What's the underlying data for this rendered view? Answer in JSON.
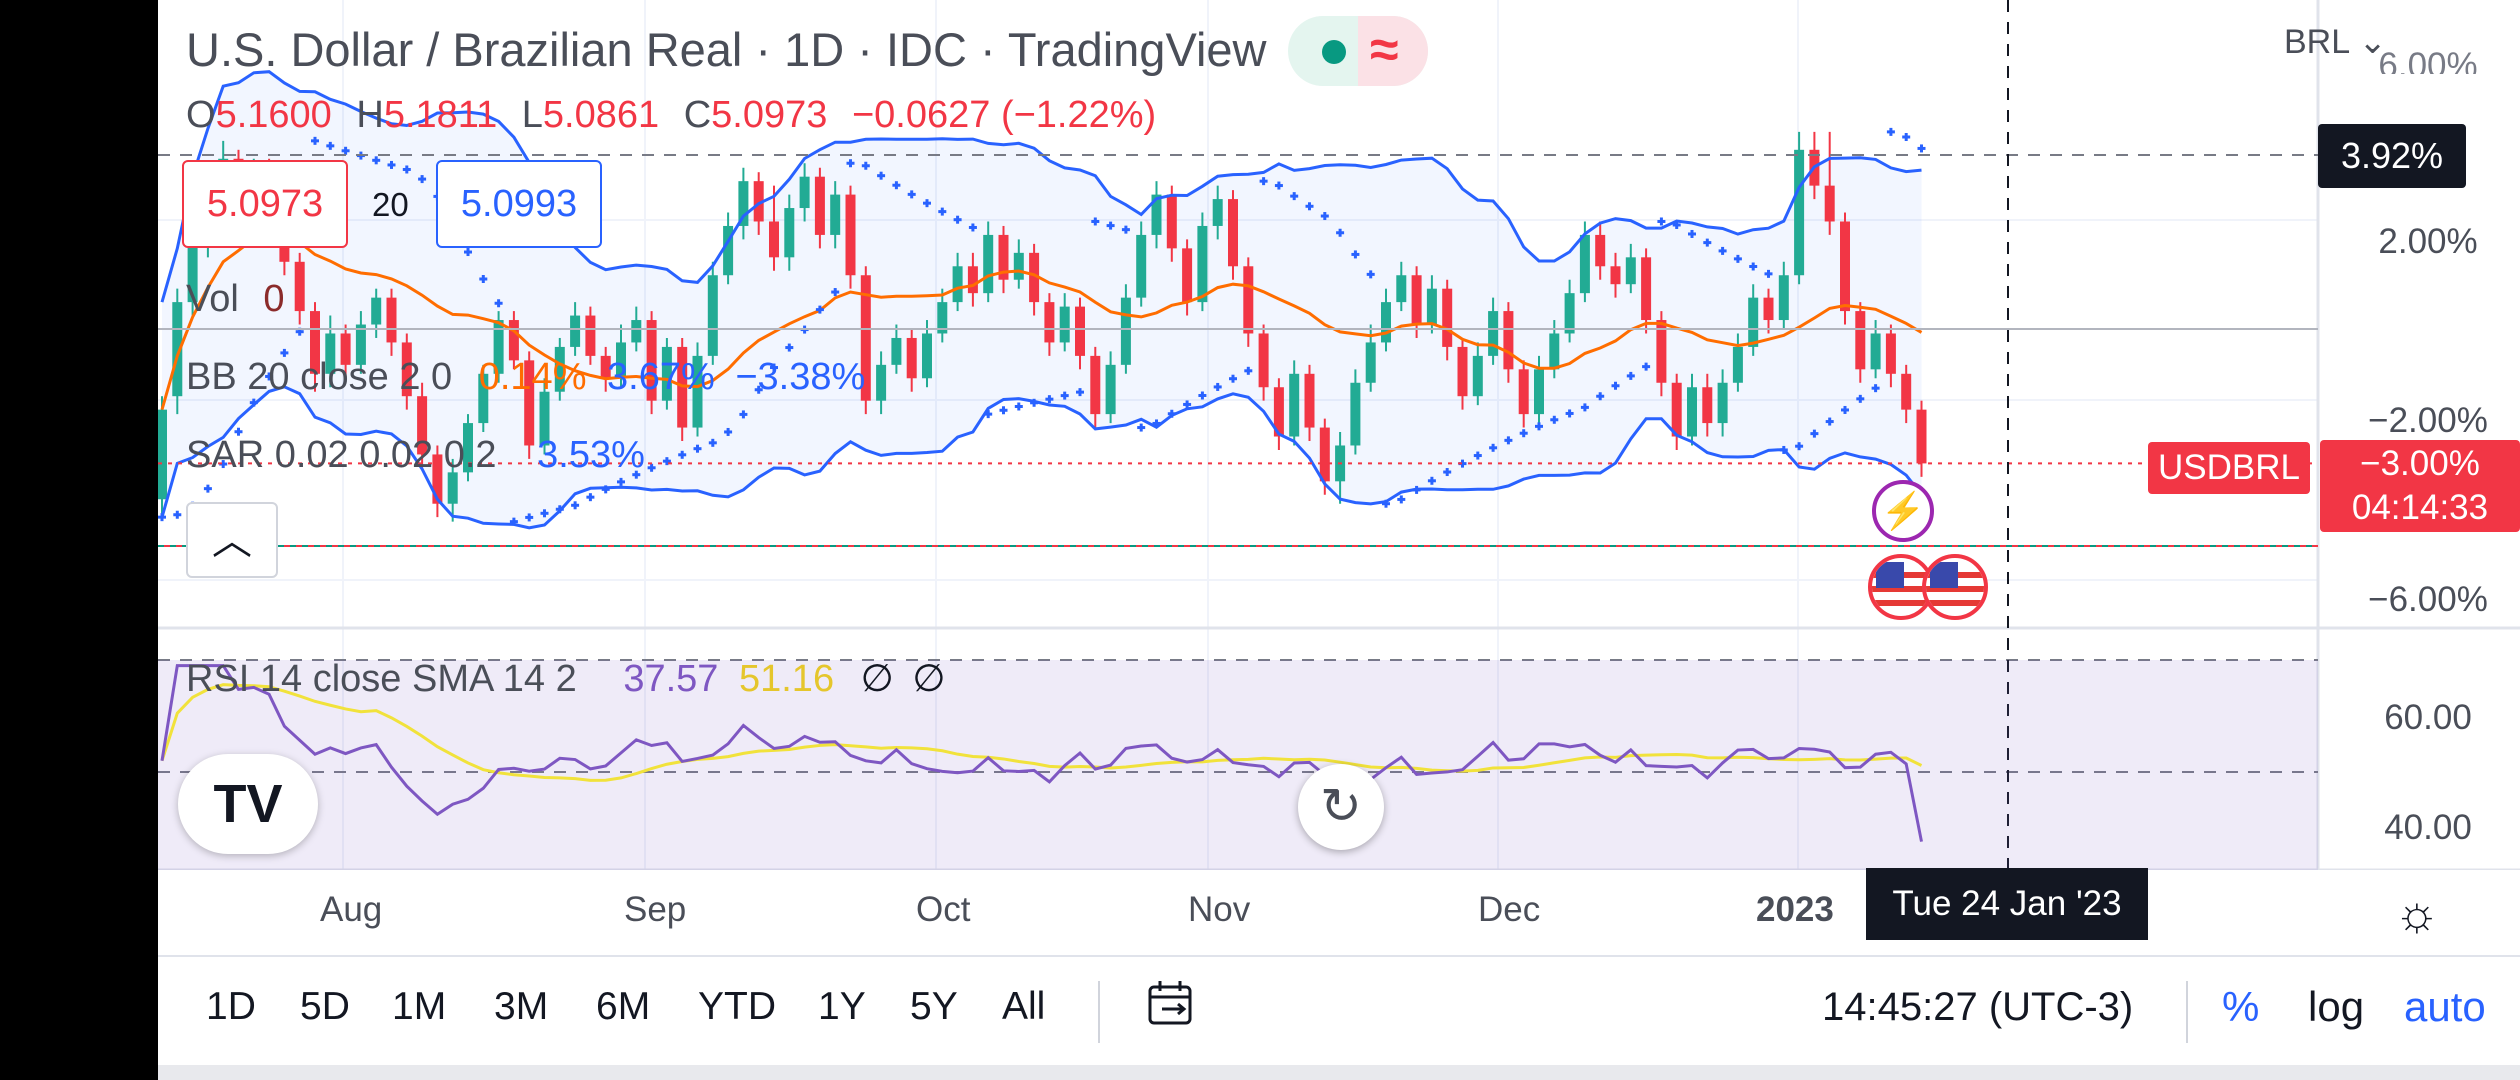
{
  "header": {
    "title": "U.S. Dollar / Brazilian Real · 1D · IDC · TradingView",
    "currency": "BRL"
  },
  "ohlc": {
    "o_key": "O",
    "o": "5.1600",
    "h_key": "H",
    "h": "5.1811",
    "l_key": "L",
    "l": "5.0861",
    "c_key": "C",
    "c": "5.0973",
    "change": "−0.0627 (−1.22%)"
  },
  "bb_boxes": {
    "left": "5.0973",
    "length": "20",
    "right": "5.0993"
  },
  "indicators": {
    "vol": {
      "name": "Vol",
      "value": "0"
    },
    "bb": {
      "name": "BB 20 close 2 0",
      "basis": "0.14%",
      "upper": "3.67%",
      "lower": "−3.38%"
    },
    "sar": {
      "name": "SAR 0.02 0.02 0.2",
      "value": "3.53%"
    },
    "rsi": {
      "name": "RSI 14 close SMA 14 2",
      "value": "37.57",
      "sma": "51.16",
      "na1": "∅",
      "na2": "∅"
    }
  },
  "price_scale": {
    "ticks": [
      "2.00%",
      "−2.00%",
      "−6.00%"
    ],
    "top_partial": "6.00%",
    "tag_high": "3.92%",
    "symbol": "USDBRL",
    "last_pct": "−3.00%",
    "countdown": "04:14:33"
  },
  "rsi_scale": {
    "ticks": [
      "60.00",
      "40.00"
    ]
  },
  "time_axis": {
    "labels": [
      "Aug",
      "Sep",
      "Oct",
      "Nov",
      "Dec"
    ],
    "year": "2023",
    "crosshair": "Tue 24 Jan '23"
  },
  "bottom_bar": {
    "ranges": [
      "1D",
      "5D",
      "1M",
      "3M",
      "6M",
      "YTD",
      "1Y",
      "5Y",
      "All"
    ],
    "clock": "14:45:27 (UTC-3)",
    "pct": "%",
    "log": "log",
    "auto": "auto"
  },
  "icons": {
    "logo": "tradingview-logo-icon",
    "reset": "reset-icon",
    "collapse": "chevron-up-icon",
    "settings": "sun-settings-icon",
    "calendar": "calendar-range-icon",
    "event_bolt": "lightning-icon",
    "event_flag": "us-flag-icon"
  },
  "colors": {
    "up": "#22ab94",
    "down": "#f23645",
    "bb_band": "#2962ff",
    "bb_basis": "#ff6d00",
    "rsi": "#7e57c2",
    "rsi_sma": "#f1e23b",
    "sar": "#2962ff"
  },
  "chart_data": {
    "type": "candlestick",
    "x_labels": [
      "Aug",
      "Sep",
      "Oct",
      "Nov",
      "Dec",
      "2023"
    ],
    "y_unit": "percent change",
    "y_ticks": [
      2,
      -2,
      -6
    ],
    "candles_pct": [
      [
        -3.8,
        -1.8,
        -4.2,
        -1.5
      ],
      [
        -1.5,
        0.6,
        -1.9,
        0.9
      ],
      [
        0.6,
        2.0,
        0.3,
        2.4
      ],
      [
        2.0,
        2.9,
        1.6,
        3.3
      ],
      [
        2.9,
        3.8,
        2.5,
        4.2
      ],
      [
        3.8,
        3.0,
        2.7,
        4.0
      ],
      [
        3.0,
        3.6,
        2.7,
        3.8
      ],
      [
        3.6,
        3.3,
        3.0,
        3.8
      ],
      [
        3.3,
        1.5,
        1.2,
        3.5
      ],
      [
        1.5,
        0.4,
        0.1,
        1.7
      ],
      [
        0.4,
        -1.0,
        -1.4,
        0.6
      ],
      [
        -1.0,
        -0.1,
        -1.3,
        0.3
      ],
      [
        -0.1,
        -0.8,
        -1.1,
        0.1
      ],
      [
        -0.8,
        0.1,
        -1.0,
        0.4
      ],
      [
        0.1,
        0.7,
        -0.2,
        0.9
      ],
      [
        0.7,
        -0.3,
        -0.6,
        0.9
      ],
      [
        -0.3,
        -1.5,
        -1.8,
        -0.1
      ],
      [
        -1.5,
        -2.8,
        -3.1,
        -1.2
      ],
      [
        -2.8,
        -3.9,
        -4.2,
        -2.6
      ],
      [
        -3.9,
        -3.2,
        -4.3,
        -2.9
      ],
      [
        -3.2,
        -2.1,
        -3.4,
        -1.9
      ],
      [
        -2.1,
        -1.0,
        -2.3,
        -0.8
      ],
      [
        -1.0,
        0.2,
        -1.2,
        0.4
      ],
      [
        0.2,
        -0.7,
        -0.9,
        0.4
      ],
      [
        -0.7,
        -2.6,
        -2.9,
        -0.5
      ],
      [
        -2.6,
        -1.4,
        -2.8,
        -1.1
      ],
      [
        -1.4,
        -0.4,
        -1.6,
        -0.2
      ],
      [
        -0.4,
        0.3,
        -0.6,
        0.6
      ],
      [
        0.3,
        -0.6,
        -0.8,
        0.5
      ],
      [
        -0.6,
        -1.1,
        -1.4,
        -0.4
      ],
      [
        -1.1,
        -0.3,
        -1.3,
        0.1
      ],
      [
        -0.3,
        0.2,
        -0.5,
        0.5
      ],
      [
        0.2,
        -1.6,
        -1.9,
        0.4
      ],
      [
        -1.6,
        -0.4,
        -1.8,
        -0.2
      ],
      [
        -0.4,
        -2.2,
        -2.5,
        -0.2
      ],
      [
        -2.2,
        -0.6,
        -2.4,
        -0.3
      ],
      [
        -0.6,
        1.2,
        -0.8,
        1.5
      ],
      [
        1.2,
        2.3,
        1.0,
        2.6
      ],
      [
        2.3,
        3.3,
        2.0,
        3.6
      ],
      [
        3.3,
        2.4,
        2.1,
        3.5
      ],
      [
        2.4,
        1.6,
        1.3,
        3.2
      ],
      [
        1.6,
        2.7,
        1.3,
        3.0
      ],
      [
        2.7,
        3.4,
        2.4,
        3.7
      ],
      [
        3.4,
        2.1,
        1.8,
        3.6
      ],
      [
        2.1,
        3.0,
        1.8,
        3.3
      ],
      [
        3.0,
        1.2,
        0.9,
        3.2
      ],
      [
        1.2,
        -1.6,
        -1.9,
        1.4
      ],
      [
        -1.6,
        -0.8,
        -1.9,
        -0.5
      ],
      [
        -0.8,
        -0.2,
        -1.0,
        0.1
      ],
      [
        -0.2,
        -1.1,
        -1.4,
        0.0
      ],
      [
        -1.1,
        -0.1,
        -1.3,
        0.2
      ],
      [
        -0.1,
        0.6,
        -0.3,
        0.9
      ],
      [
        0.6,
        1.4,
        0.4,
        1.7
      ],
      [
        1.4,
        0.8,
        0.5,
        1.7
      ],
      [
        0.8,
        2.1,
        0.6,
        2.4
      ],
      [
        2.1,
        1.1,
        0.8,
        2.3
      ],
      [
        1.1,
        1.7,
        0.9,
        2.0
      ],
      [
        1.7,
        0.6,
        0.3,
        1.9
      ],
      [
        0.6,
        -0.3,
        -0.6,
        0.8
      ],
      [
        -0.3,
        0.5,
        -0.5,
        0.8
      ],
      [
        0.5,
        -0.6,
        -0.9,
        0.7
      ],
      [
        -0.6,
        -1.9,
        -2.2,
        -0.4
      ],
      [
        -1.9,
        -0.8,
        -2.1,
        -0.5
      ],
      [
        -0.8,
        0.7,
        -1.0,
        1.0
      ],
      [
        0.7,
        2.1,
        0.5,
        2.4
      ],
      [
        2.1,
        3.0,
        1.8,
        3.3
      ],
      [
        3.0,
        1.8,
        1.5,
        3.2
      ],
      [
        1.8,
        0.6,
        0.3,
        2.0
      ],
      [
        0.6,
        2.3,
        0.4,
        2.6
      ],
      [
        2.3,
        2.9,
        2.0,
        3.2
      ],
      [
        2.9,
        1.4,
        1.1,
        3.1
      ],
      [
        1.4,
        -0.1,
        -0.4,
        1.6
      ],
      [
        -0.1,
        -1.3,
        -1.6,
        0.1
      ],
      [
        -1.3,
        -2.4,
        -2.7,
        -1.1
      ],
      [
        -2.4,
        -1.0,
        -2.6,
        -0.7
      ],
      [
        -1.0,
        -2.2,
        -2.5,
        -0.8
      ],
      [
        -2.2,
        -3.4,
        -3.7,
        -2.0
      ],
      [
        -3.4,
        -2.6,
        -3.9,
        -2.3
      ],
      [
        -2.6,
        -1.2,
        -2.8,
        -0.9
      ],
      [
        -1.2,
        -0.3,
        -1.4,
        0.1
      ],
      [
        -0.3,
        0.6,
        -0.5,
        0.9
      ],
      [
        0.6,
        1.2,
        0.4,
        1.5
      ],
      [
        1.2,
        0.1,
        -0.2,
        1.4
      ],
      [
        0.1,
        0.9,
        -0.1,
        1.2
      ],
      [
        0.9,
        -0.4,
        -0.7,
        1.1
      ],
      [
        -0.4,
        -1.5,
        -1.8,
        -0.2
      ],
      [
        -1.5,
        -0.6,
        -1.7,
        -0.3
      ],
      [
        -0.6,
        0.4,
        -0.8,
        0.7
      ],
      [
        0.4,
        -0.9,
        -1.2,
        0.6
      ],
      [
        -0.9,
        -1.9,
        -2.2,
        -0.7
      ],
      [
        -1.9,
        -0.9,
        -2.1,
        -0.6
      ],
      [
        -0.9,
        -0.1,
        -1.1,
        0.2
      ],
      [
        -0.1,
        0.8,
        -0.3,
        1.1
      ],
      [
        0.8,
        2.1,
        0.6,
        2.4
      ],
      [
        2.1,
        1.4,
        1.1,
        2.4
      ],
      [
        1.4,
        1.0,
        0.7,
        1.7
      ],
      [
        1.0,
        1.6,
        0.8,
        1.9
      ],
      [
        1.6,
        0.2,
        -0.1,
        1.8
      ],
      [
        0.2,
        -1.2,
        -1.5,
        0.4
      ],
      [
        -1.2,
        -2.4,
        -2.7,
        -1.0
      ],
      [
        -2.4,
        -1.3,
        -2.6,
        -1.0
      ],
      [
        -1.3,
        -2.1,
        -2.4,
        -1.0
      ],
      [
        -2.1,
        -1.2,
        -2.4,
        -0.9
      ],
      [
        -1.2,
        -0.4,
        -1.4,
        -0.1
      ],
      [
        -0.4,
        0.7,
        -0.6,
        1.0
      ],
      [
        0.7,
        0.2,
        -0.1,
        0.9
      ],
      [
        0.2,
        1.2,
        0.0,
        1.5
      ],
      [
        1.2,
        4.0,
        1.0,
        4.4
      ],
      [
        4.0,
        3.2,
        2.9,
        4.4
      ],
      [
        3.2,
        2.4,
        2.1,
        4.4
      ],
      [
        2.4,
        0.4,
        0.1,
        2.6
      ],
      [
        0.4,
        -0.9,
        -1.2,
        0.6
      ],
      [
        -0.9,
        -0.1,
        -1.1,
        0.2
      ],
      [
        -0.1,
        -1.0,
        -1.3,
        0.1
      ],
      [
        -1.0,
        -1.8,
        -2.1,
        -0.8
      ],
      [
        -1.8,
        -3.0,
        -3.3,
        -1.6
      ]
    ],
    "rsi": {
      "last": 37.57,
      "sma_last": 51.16,
      "ticks": [
        60,
        40
      ]
    },
    "last_change_pct": -3.0,
    "crosshair_date": "Tue 24 Jan '23"
  }
}
